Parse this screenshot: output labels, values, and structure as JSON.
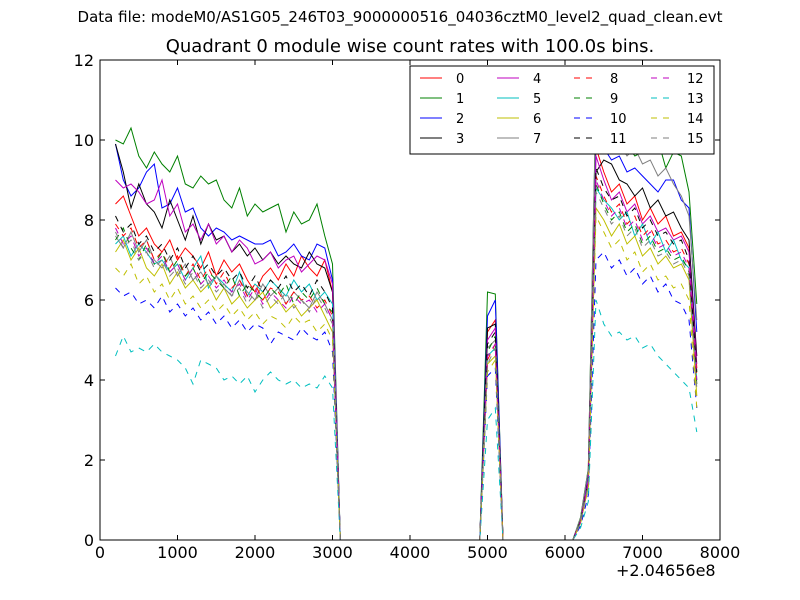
{
  "figure": {
    "suptitle": "Data file: modeM0/AS1G05_246T03_9000000516_04036cztM0_level2_quad_clean.evt"
  },
  "chart_data": {
    "type": "line",
    "title": "Quadrant 0 module wise count rates with 100.0s bins.",
    "xlabel": "",
    "ylabel": "",
    "x_offset_label": "+2.04656e8",
    "xlim": [
      0,
      8000
    ],
    "ylim": [
      0,
      12
    ],
    "xticks": [
      0,
      1000,
      2000,
      3000,
      4000,
      5000,
      6000,
      7000,
      8000
    ],
    "yticks": [
      0,
      2,
      4,
      6,
      8,
      10,
      12
    ],
    "legend_position": "top-right",
    "legend_columns": 4,
    "x": [
      200,
      300,
      400,
      500,
      600,
      700,
      800,
      900,
      1000,
      1100,
      1200,
      1300,
      1400,
      1500,
      1600,
      1700,
      1800,
      1900,
      2000,
      2100,
      2200,
      2300,
      2400,
      2500,
      2600,
      2700,
      2800,
      2900,
      3000,
      3100,
      3200,
      3300,
      3400,
      3500,
      3600,
      3700,
      3800,
      3900,
      4000,
      4100,
      4200,
      4300,
      4400,
      4500,
      4600,
      4700,
      4800,
      4900,
      5000,
      5100,
      5200,
      5300,
      5400,
      5500,
      5600,
      5700,
      5800,
      5900,
      6000,
      6100,
      6200,
      6300,
      6400,
      6500,
      6600,
      6700,
      6800,
      6900,
      7000,
      7100,
      7200,
      7300,
      7400,
      7500,
      7600,
      7700
    ],
    "series": [
      {
        "name": "0",
        "color": "#ff0000",
        "dash": "solid",
        "active": [
          8.4,
          8.6,
          8.1,
          7.6,
          7.8,
          7.4,
          7.2,
          7.5,
          7.0,
          7.3,
          7.1,
          6.8,
          7.2,
          6.6,
          7.0,
          6.7,
          6.9,
          6.5,
          6.2,
          6.6,
          6.8,
          6.5,
          6.9,
          6.6,
          7.1,
          6.8,
          6.6,
          7.0,
          6.2
        ],
        "burst": [
          5.2,
          5.5
        ],
        "second": [
          9.8,
          9.2,
          8.7,
          8.9,
          8.4,
          8.6,
          8.0,
          8.3,
          7.9,
          8.1,
          7.6,
          7.7,
          7.3,
          4.3
        ]
      },
      {
        "name": "1",
        "color": "#008000",
        "dash": "solid",
        "active": [
          10.0,
          9.9,
          10.3,
          9.6,
          9.3,
          9.7,
          9.4,
          9.2,
          9.6,
          8.9,
          8.8,
          9.1,
          8.9,
          9.0,
          8.5,
          8.3,
          8.8,
          8.1,
          8.4,
          8.2,
          8.3,
          8.4,
          7.7,
          8.2,
          7.9,
          8.0,
          8.4,
          7.6,
          6.9
        ],
        "burst": [
          6.2,
          6.15
        ],
        "second": [
          11.1,
          10.9,
          10.3,
          9.8,
          9.9,
          9.6,
          9.7,
          10.1,
          10.0,
          9.3,
          9.7,
          9.6,
          8.7,
          5.9
        ]
      },
      {
        "name": "2",
        "color": "#0000ff",
        "dash": "solid",
        "active": [
          9.9,
          9.0,
          8.6,
          8.8,
          9.2,
          9.4,
          8.3,
          8.4,
          8.8,
          8.2,
          8.3,
          7.8,
          7.6,
          7.8,
          7.7,
          7.5,
          7.6,
          7.5,
          7.4,
          7.4,
          7.5,
          7.1,
          7.2,
          7.4,
          7.1,
          7.0,
          7.4,
          7.3,
          6.5
        ],
        "burst": [
          5.6,
          6.0
        ],
        "second": [
          10.4,
          9.8,
          9.5,
          9.6,
          9.2,
          9.3,
          9.1,
          8.9,
          8.7,
          9.0,
          9.0,
          8.5,
          8.3,
          5.2
        ]
      },
      {
        "name": "3",
        "color": "#000000",
        "dash": "solid",
        "active": [
          9.9,
          9.2,
          8.3,
          8.9,
          8.4,
          8.2,
          7.8,
          8.5,
          8.0,
          7.5,
          8.1,
          7.4,
          7.9,
          7.5,
          7.6,
          7.2,
          7.4,
          7.1,
          7.3,
          7.0,
          7.2,
          6.9,
          7.1,
          6.9,
          6.8,
          7.2,
          6.9,
          6.8,
          6.2
        ],
        "burst": [
          5.3,
          5.4
        ],
        "second": [
          9.2,
          9.5,
          9.4,
          9.0,
          8.9,
          8.6,
          8.8,
          8.3,
          8.5,
          8.1,
          8.2,
          7.8,
          7.5,
          4.6
        ]
      },
      {
        "name": "4",
        "color": "#bf00bf",
        "dash": "solid",
        "active": [
          9.0,
          8.8,
          8.9,
          8.7,
          8.4,
          8.5,
          9.0,
          8.1,
          8.4,
          7.7,
          7.9,
          7.5,
          7.9,
          7.4,
          7.6,
          7.2,
          7.5,
          7.3,
          6.9,
          7.0,
          7.2,
          6.8,
          7.0,
          7.1,
          6.7,
          6.9,
          7.1,
          7.0,
          6.4
        ],
        "burst": [
          5.0,
          5.3
        ],
        "second": [
          9.6,
          9.0,
          8.5,
          8.7,
          8.2,
          8.4,
          7.9,
          8.1,
          7.7,
          7.8,
          7.5,
          7.6,
          7.2,
          4.4
        ]
      },
      {
        "name": "5",
        "color": "#00bfbf",
        "dash": "solid",
        "active": [
          7.4,
          7.6,
          7.1,
          7.4,
          7.2,
          6.9,
          7.0,
          6.7,
          6.9,
          6.5,
          6.8,
          7.1,
          6.3,
          6.6,
          6.4,
          6.2,
          6.7,
          6.1,
          6.4,
          6.2,
          6.5,
          6.3,
          6.1,
          6.5,
          6.2,
          6.4,
          6.0,
          6.2,
          5.9
        ],
        "burst": [
          4.6,
          4.8
        ],
        "second": [
          8.8,
          8.5,
          8.3,
          8.0,
          8.2,
          7.6,
          7.9,
          7.4,
          7.7,
          7.2,
          7.5,
          7.0,
          6.8,
          4.0
        ]
      },
      {
        "name": "6",
        "color": "#bfbf00",
        "dash": "solid",
        "active": [
          7.2,
          7.5,
          7.0,
          7.3,
          6.8,
          6.6,
          6.9,
          6.4,
          6.7,
          6.3,
          6.5,
          6.2,
          6.4,
          6.0,
          6.3,
          5.9,
          6.1,
          5.8,
          6.0,
          6.2,
          5.8,
          6.0,
          5.7,
          5.9,
          5.6,
          5.8,
          6.0,
          5.6,
          5.2
        ],
        "burst": [
          4.4,
          4.6
        ],
        "second": [
          8.3,
          8.0,
          7.6,
          7.9,
          7.4,
          7.6,
          7.1,
          7.3,
          6.9,
          7.1,
          6.8,
          6.9,
          6.5,
          3.6
        ]
      },
      {
        "name": "7",
        "color": "#7f7f7f",
        "dash": "solid",
        "active": [
          7.6,
          7.3,
          7.7,
          7.2,
          7.5,
          7.0,
          6.8,
          7.1,
          6.6,
          6.9,
          6.5,
          6.7,
          6.4,
          6.6,
          6.3,
          6.1,
          6.5,
          6.2,
          6.0,
          6.4,
          6.1,
          6.3,
          5.9,
          6.2,
          6.0,
          5.8,
          6.2,
          5.9,
          5.5
        ],
        "burst": [
          4.8,
          5.0
        ],
        "second": [
          11.0,
          10.7,
          10.2,
          9.9,
          9.6,
          9.8,
          9.4,
          9.5,
          9.1,
          9.3,
          8.9,
          8.6,
          8.1,
          5.5
        ]
      },
      {
        "name": "8",
        "color": "#ff0000",
        "dash": "dashed",
        "active": [
          7.9,
          7.6,
          7.8,
          7.3,
          7.5,
          7.0,
          7.2,
          6.8,
          7.1,
          6.6,
          6.9,
          6.5,
          6.8,
          6.4,
          6.7,
          6.3,
          6.5,
          6.1,
          6.4,
          6.0,
          6.3,
          6.2,
          5.9,
          6.2,
          6.0,
          6.1,
          5.8,
          6.0,
          5.6
        ],
        "burst": [
          4.5,
          4.9
        ],
        "second": [
          9.1,
          8.6,
          8.2,
          8.4,
          7.9,
          8.1,
          7.6,
          7.8,
          7.4,
          7.5,
          7.2,
          7.3,
          6.9,
          4.1
        ]
      },
      {
        "name": "9",
        "color": "#008000",
        "dash": "dashed",
        "active": [
          7.5,
          7.8,
          7.3,
          7.0,
          7.4,
          6.9,
          7.2,
          6.7,
          7.0,
          6.6,
          6.8,
          6.4,
          6.7,
          6.5,
          6.3,
          6.6,
          6.1,
          6.4,
          6.2,
          6.0,
          6.3,
          6.1,
          6.4,
          5.9,
          6.2,
          6.0,
          6.3,
          5.9,
          5.7
        ],
        "burst": [
          4.7,
          5.1
        ],
        "second": [
          8.9,
          8.4,
          8.0,
          8.2,
          7.7,
          7.9,
          7.4,
          7.6,
          7.2,
          7.3,
          7.0,
          7.1,
          6.7,
          3.9
        ]
      },
      {
        "name": "10",
        "color": "#0000ff",
        "dash": "dashed",
        "active": [
          6.3,
          6.1,
          6.2,
          5.9,
          6.0,
          5.8,
          6.1,
          5.7,
          5.9,
          5.6,
          5.8,
          5.5,
          5.7,
          5.4,
          5.6,
          5.3,
          5.5,
          5.2,
          5.4,
          5.3,
          4.9,
          5.2,
          5.1,
          5.0,
          5.3,
          5.1,
          5.0,
          5.2,
          4.7
        ],
        "burst": [
          4.1,
          4.3
        ],
        "second": [
          7.0,
          7.2,
          6.8,
          7.0,
          6.6,
          6.8,
          6.4,
          6.6,
          6.2,
          6.4,
          6.0,
          5.9,
          5.5,
          3.3
        ]
      },
      {
        "name": "11",
        "color": "#000000",
        "dash": "dashed",
        "active": [
          8.1,
          7.7,
          7.9,
          7.4,
          7.6,
          7.2,
          7.4,
          7.0,
          7.3,
          6.8,
          7.1,
          6.7,
          6.9,
          6.6,
          6.8,
          6.5,
          6.7,
          6.3,
          6.6,
          6.2,
          6.5,
          6.3,
          6.6,
          6.2,
          6.4,
          6.1,
          6.5,
          6.2,
          5.8
        ],
        "burst": [
          4.9,
          5.2
        ],
        "second": [
          9.3,
          8.8,
          8.5,
          8.6,
          8.1,
          8.3,
          7.8,
          8.0,
          7.6,
          7.7,
          7.4,
          7.5,
          7.0,
          4.2
        ]
      },
      {
        "name": "12",
        "color": "#bf00bf",
        "dash": "dashed",
        "active": [
          7.8,
          7.4,
          7.6,
          7.1,
          7.3,
          6.9,
          7.1,
          6.7,
          6.9,
          6.5,
          6.8,
          6.4,
          6.6,
          6.3,
          6.5,
          6.2,
          6.4,
          6.0,
          6.3,
          5.9,
          6.2,
          6.0,
          5.8,
          6.1,
          5.9,
          6.0,
          5.7,
          5.9,
          5.5
        ],
        "burst": [
          4.6,
          4.9
        ],
        "second": [
          9.0,
          8.5,
          8.1,
          8.3,
          7.8,
          8.0,
          7.5,
          7.7,
          7.3,
          7.4,
          7.1,
          7.2,
          6.8,
          4.0
        ]
      },
      {
        "name": "13",
        "color": "#00bfbf",
        "dash": "dashed",
        "active": [
          4.6,
          5.1,
          4.7,
          4.8,
          4.7,
          4.9,
          4.7,
          4.6,
          4.5,
          4.3,
          3.9,
          4.5,
          4.4,
          4.3,
          4.0,
          4.1,
          3.9,
          4.1,
          3.7,
          4.0,
          4.2,
          4.0,
          3.9,
          4.0,
          3.8,
          3.9,
          3.8,
          4.1,
          3.8
        ],
        "burst": [
          3.0,
          3.3
        ],
        "second": [
          6.0,
          5.4,
          5.1,
          5.2,
          5.0,
          5.1,
          4.8,
          4.9,
          4.6,
          4.4,
          4.2,
          4.0,
          3.8,
          2.7
        ]
      },
      {
        "name": "14",
        "color": "#bfbf00",
        "dash": "dashed",
        "active": [
          6.8,
          6.6,
          6.9,
          6.4,
          6.6,
          6.2,
          6.4,
          6.0,
          6.3,
          5.9,
          6.1,
          5.8,
          6.0,
          5.7,
          5.9,
          5.6,
          5.8,
          5.5,
          5.7,
          5.4,
          5.6,
          5.5,
          5.3,
          5.6,
          5.4,
          5.5,
          5.2,
          5.4,
          5.0
        ],
        "burst": [
          4.2,
          4.5
        ],
        "second": [
          8.1,
          7.7,
          7.3,
          7.5,
          7.0,
          7.2,
          6.7,
          6.9,
          6.5,
          6.6,
          6.3,
          6.4,
          6.0,
          3.3
        ]
      },
      {
        "name": "15",
        "color": "#7f7f7f",
        "dash": "dashed",
        "active": [
          7.7,
          7.3,
          7.5,
          7.0,
          7.2,
          6.8,
          7.0,
          6.6,
          6.8,
          6.4,
          6.7,
          6.3,
          6.5,
          6.2,
          6.4,
          6.1,
          6.3,
          5.9,
          6.2,
          5.8,
          6.1,
          5.9,
          6.2,
          5.8,
          6.0,
          5.7,
          6.1,
          5.8,
          5.4
        ],
        "burst": [
          4.4,
          4.8
        ],
        "second": [
          8.7,
          8.3,
          7.9,
          8.1,
          7.6,
          7.8,
          7.3,
          7.5,
          7.1,
          7.2,
          6.9,
          7.0,
          6.6,
          3.8
        ]
      }
    ]
  }
}
